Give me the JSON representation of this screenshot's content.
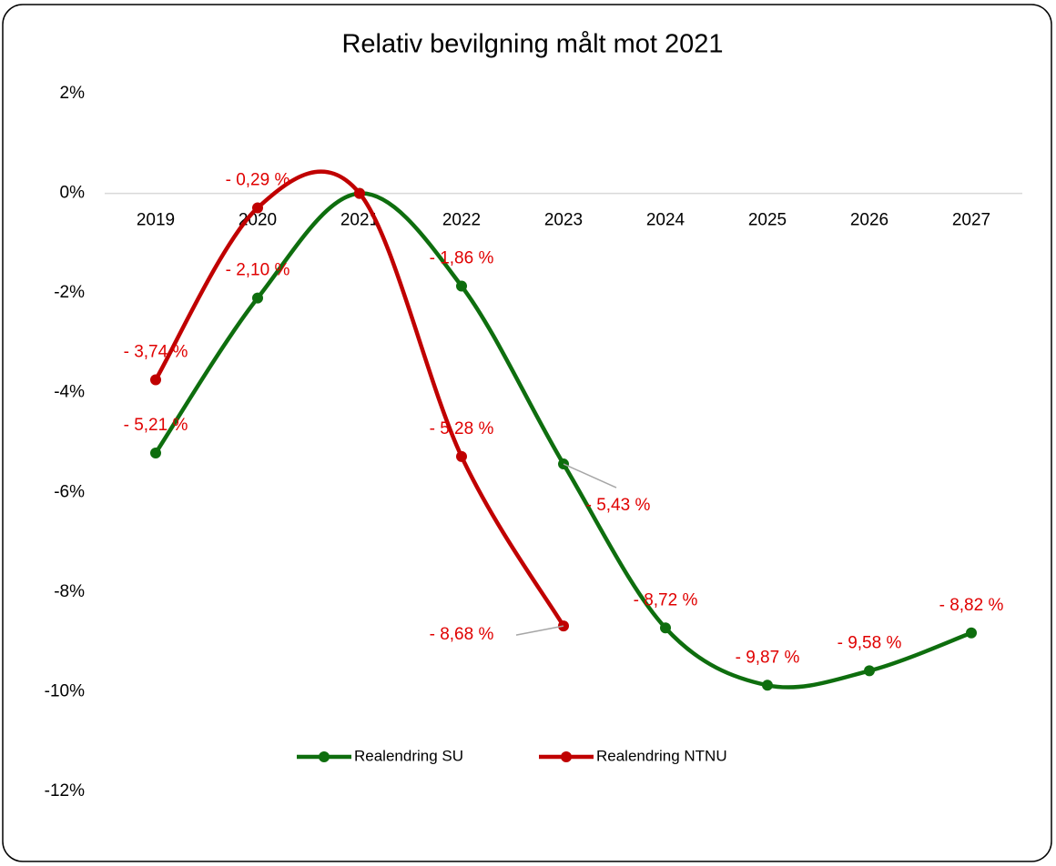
{
  "chart_data": {
    "type": "line",
    "title": "Relativ bevilgning målt mot 2021",
    "categories": [
      "2019",
      "2020",
      "2021",
      "2022",
      "2023",
      "2024",
      "2025",
      "2026",
      "2027"
    ],
    "series": [
      {
        "name": "Realendring SU",
        "color": "#0e6e0e",
        "values": [
          -5.21,
          -2.1,
          0,
          -1.86,
          -5.43,
          -8.72,
          -9.87,
          -9.58,
          -8.82
        ],
        "value_labels": [
          "- 5,21 %",
          "- 2,10 %",
          null,
          "- 1,86 %",
          "- 5,43 %",
          "- 8,72 %",
          "- 9,87 %",
          "- 9,58 %",
          "- 8,82 %"
        ]
      },
      {
        "name": "Realendring NTNU",
        "color": "#c00000",
        "values": [
          -3.74,
          -0.29,
          0,
          -5.28,
          -8.68,
          null,
          null,
          null,
          null
        ],
        "value_labels": [
          "- 3,74 %",
          "- 0,29 %",
          null,
          "- 5,28 %",
          "- 8,68 %",
          null,
          null,
          null,
          null
        ]
      }
    ],
    "ylim": [
      -12,
      2
    ],
    "yticks": [
      {
        "value": 2,
        "label": "2%"
      },
      {
        "value": 0,
        "label": "0%"
      },
      {
        "value": -2,
        "label": "-2%"
      },
      {
        "value": -4,
        "label": "-4%"
      },
      {
        "value": -6,
        "label": "-6%"
      },
      {
        "value": -8,
        "label": "-8%"
      },
      {
        "value": -10,
        "label": "-10%"
      },
      {
        "value": -12,
        "label": "-12%"
      }
    ],
    "grid": false,
    "legend": "bottom"
  }
}
